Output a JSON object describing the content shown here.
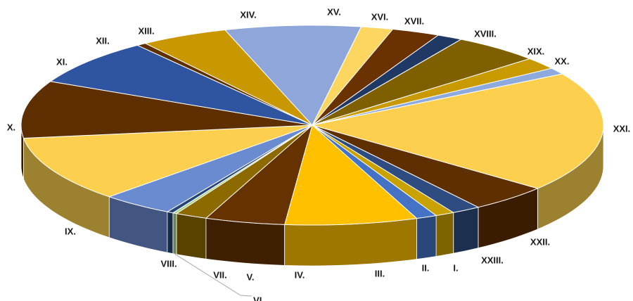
{
  "chart_data": {
    "type": "pie",
    "style": "3d-exploded-perspective",
    "title": "",
    "legend": "none",
    "slices": [
      {
        "label": "I.",
        "value": 1.2,
        "color": "#C9A200"
      },
      {
        "label": "II.",
        "value": 1.3,
        "color": "#4472C4"
      },
      {
        "label": "III.",
        "value": 8.3,
        "color": "#FFC000"
      },
      {
        "label": "IV.",
        "value": 5.0,
        "color": "#663300"
      },
      {
        "label": "V.",
        "value": 2.0,
        "color": "#8C6A00"
      },
      {
        "label": "VI.",
        "value": 0.25,
        "color": "#A9D18E"
      },
      {
        "label": "VII.",
        "value": 0.4,
        "color": "#264478"
      },
      {
        "label": "VIII.",
        "value": 4.5,
        "color": "#6A8BD0"
      },
      {
        "label": "IX.",
        "value": 12.0,
        "color": "#FCD04E"
      },
      {
        "label": "X.",
        "value": 10.5,
        "color": "#5E2F00"
      },
      {
        "label": "XI.",
        "value": 8.5,
        "color": "#2F55A0"
      },
      {
        "label": "XII.",
        "value": 0.6,
        "color": "#5E2F00"
      },
      {
        "label": "XIII.",
        "value": 5.5,
        "color": "#C99700"
      },
      {
        "label": "XIV.",
        "value": 8.5,
        "color": "#8EA6D9"
      },
      {
        "label": "XV.",
        "value": 2.0,
        "color": "#FCD660"
      },
      {
        "label": "XVI.",
        "value": 3.0,
        "color": "#6A3200"
      },
      {
        "label": "XVII.",
        "value": 1.6,
        "color": "#1F3864"
      },
      {
        "label": "XVIII.",
        "value": 5.5,
        "color": "#7F6000"
      },
      {
        "label": "XIX.",
        "value": 2.2,
        "color": "#C99A00"
      },
      {
        "label": "XX.",
        "value": 1.2,
        "color": "#8EA9DB"
      },
      {
        "label": "XXI.",
        "value": 22.0,
        "color": "#FCD04E"
      },
      {
        "label": "XXII.",
        "value": 5.0,
        "color": "#5E2F00"
      },
      {
        "label": "XXIII.",
        "value": 1.8,
        "color": "#2F4C80"
      }
    ]
  }
}
